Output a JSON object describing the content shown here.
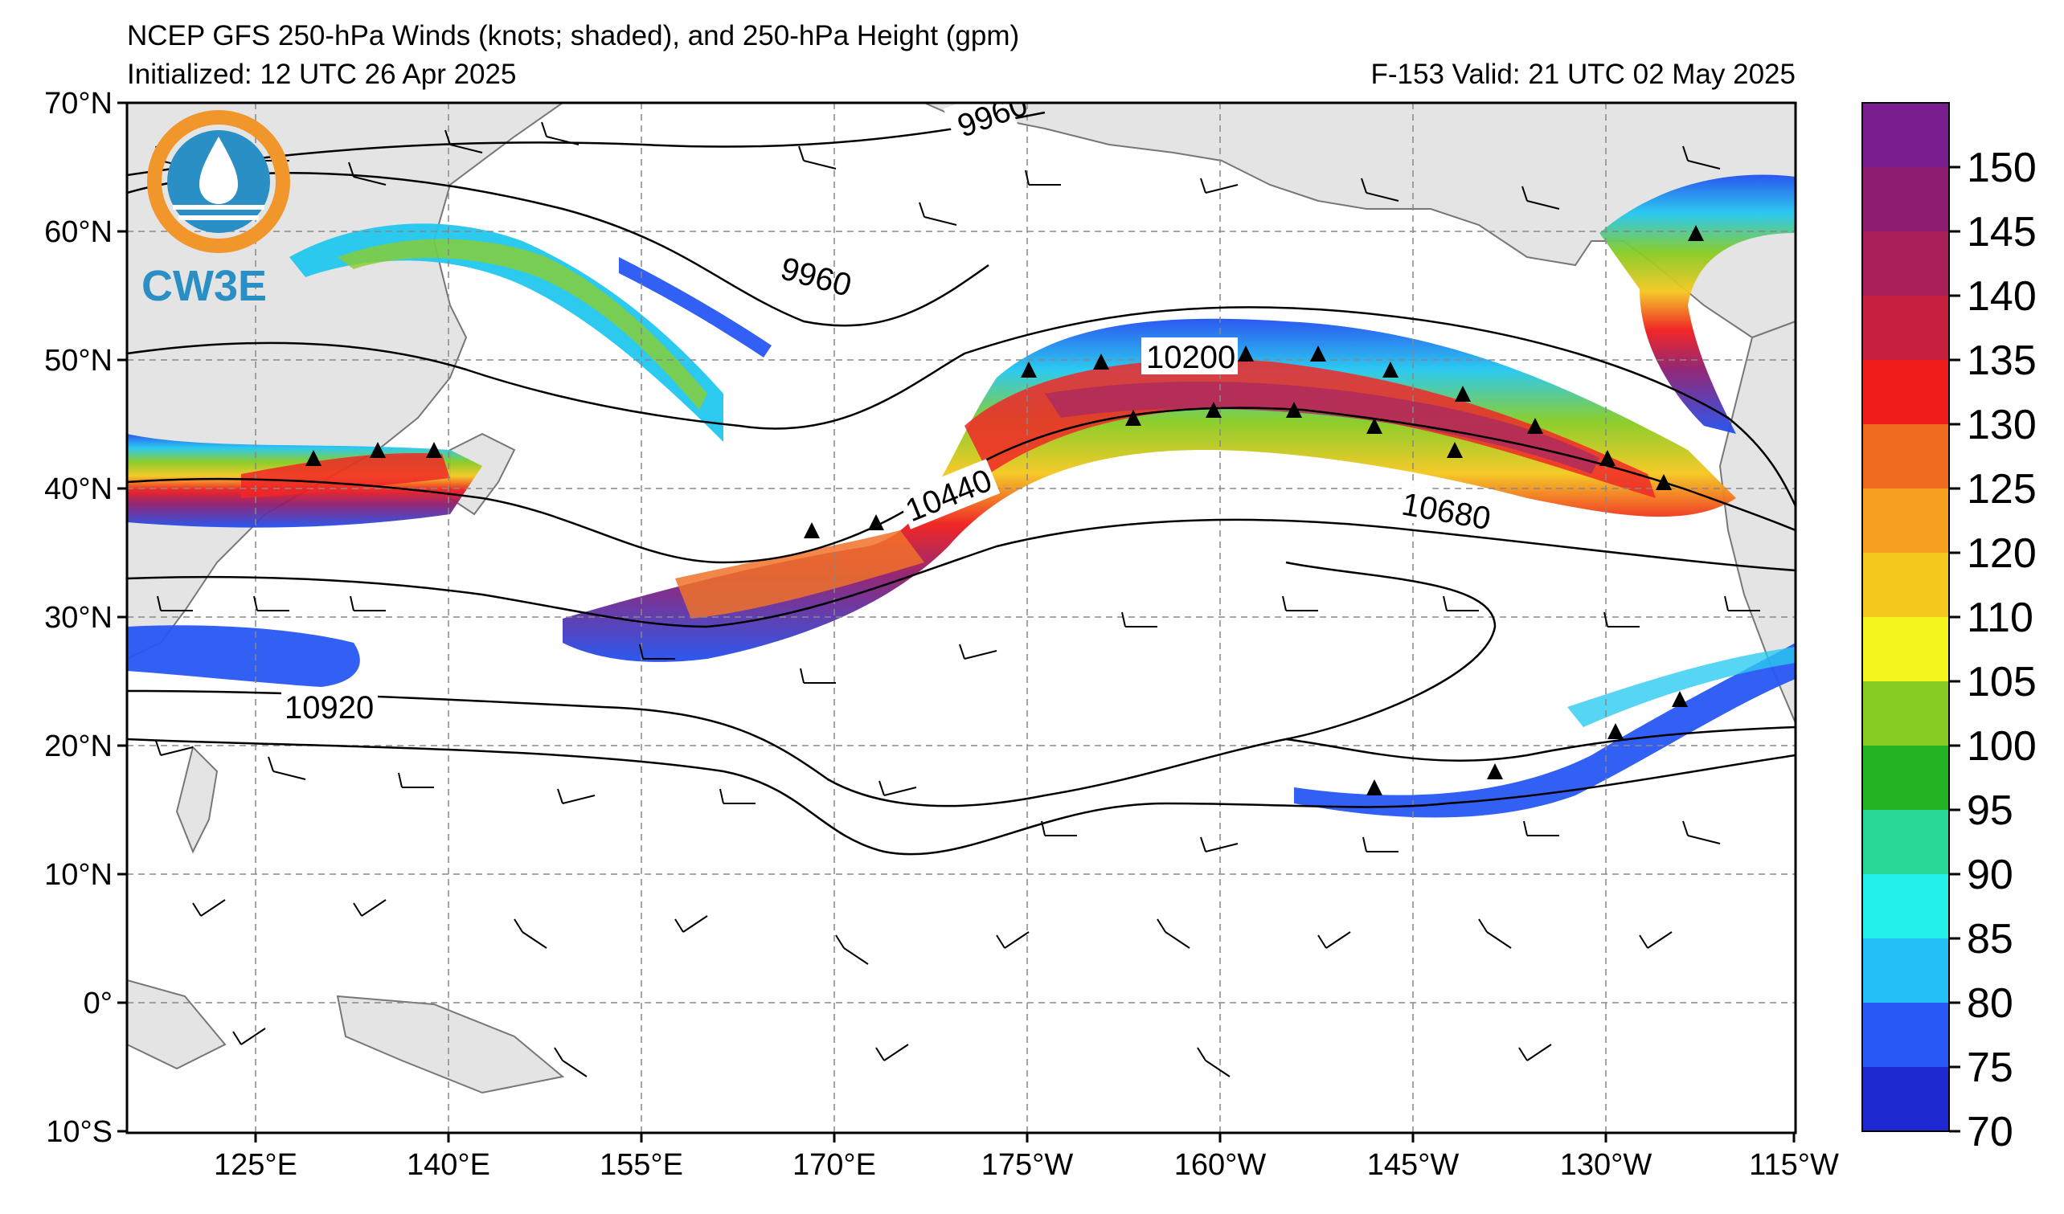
{
  "title": {
    "line1": "NCEP GFS 250-hPa Winds (knots; shaded), and 250-hPa Height (gpm)",
    "initialized": "Initialized: 12 UTC 26 Apr 2025",
    "valid": "F-153  Valid: 21 UTC 02 May 2025"
  },
  "logo": {
    "text": "CW3E"
  },
  "map": {
    "lat_labels": [
      "70°N",
      "60°N",
      "50°N",
      "40°N",
      "30°N",
      "20°N",
      "10°N",
      "0°",
      "10°S"
    ],
    "lon_labels": [
      "125°E",
      "140°E",
      "155°E",
      "170°E",
      "175°W",
      "160°W",
      "145°W",
      "130°W",
      "115°W"
    ],
    "contour_labels": [
      "9960",
      "9960",
      "10200",
      "10440",
      "10680",
      "10920"
    ]
  },
  "colorbar": {
    "ticks": [
      "150",
      "145",
      "140",
      "135",
      "130",
      "125",
      "120",
      "110",
      "105",
      "100",
      "95",
      "90",
      "85",
      "80",
      "75",
      "70"
    ],
    "colors": [
      "#7a1d8e",
      "#8e1d6f",
      "#a81f57",
      "#c8203f",
      "#f01c1c",
      "#f06a1e",
      "#f5a01e",
      "#f5c81e",
      "#f5f51e",
      "#86cc22",
      "#22b422",
      "#28d696",
      "#22f0e8",
      "#22c0f5",
      "#2858f5",
      "#1e28d0"
    ]
  }
}
